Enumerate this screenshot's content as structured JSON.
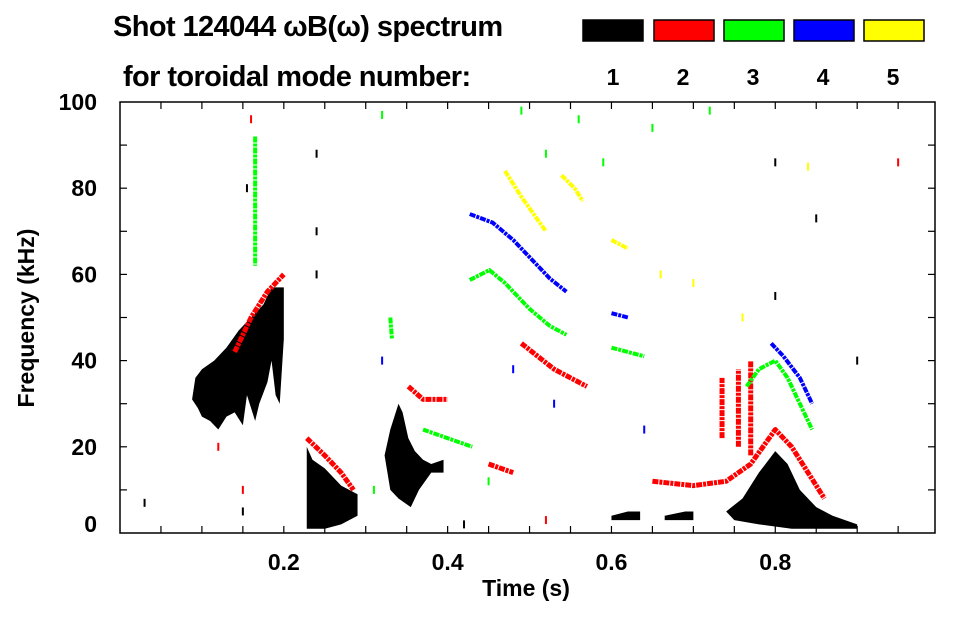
{
  "chart_data": {
    "type": "heatmap",
    "title": "Shot 124044 ωB(ω) spectrum",
    "subtitle": "for toroidal mode number:",
    "xlabel": "Time (s)",
    "ylabel": "Frequency (kHz)",
    "xlim": [
      0,
      0.995
    ],
    "ylim": [
      0,
      100
    ],
    "xticks": [
      0.2,
      0.4,
      0.6,
      0.8
    ],
    "xtick_labels": [
      "0.2",
      "0.4",
      "0.6",
      "0.8"
    ],
    "yticks": [
      0,
      20,
      40,
      60,
      80,
      100
    ],
    "ytick_labels": [
      "0",
      "20",
      "40",
      "60",
      "80",
      "100"
    ],
    "legend": [
      {
        "label": "1",
        "color": "#000000"
      },
      {
        "label": "2",
        "color": "#ff0000"
      },
      {
        "label": "3",
        "color": "#00ff00"
      },
      {
        "label": "4",
        "color": "#0000ff"
      },
      {
        "label": "5",
        "color": "#ffff00"
      }
    ],
    "legend_placement": "top-right",
    "regions": [
      {
        "mode": 1,
        "points": [
          [
            0.088,
            31
          ],
          [
            0.092,
            36
          ],
          [
            0.1,
            38
          ],
          [
            0.115,
            40
          ],
          [
            0.13,
            43
          ],
          [
            0.145,
            47
          ],
          [
            0.16,
            50
          ],
          [
            0.175,
            53
          ],
          [
            0.185,
            57
          ],
          [
            0.2,
            57
          ],
          [
            0.2,
            45
          ],
          [
            0.195,
            30
          ],
          [
            0.19,
            32
          ],
          [
            0.185,
            40
          ],
          [
            0.18,
            35
          ],
          [
            0.17,
            30
          ],
          [
            0.165,
            26
          ],
          [
            0.155,
            32
          ],
          [
            0.15,
            25
          ],
          [
            0.14,
            28
          ],
          [
            0.13,
            27
          ],
          [
            0.12,
            24
          ],
          [
            0.11,
            26
          ],
          [
            0.1,
            27
          ],
          [
            0.095,
            29
          ]
        ]
      },
      {
        "mode": 1,
        "points": [
          [
            0.228,
            20
          ],
          [
            0.235,
            17
          ],
          [
            0.25,
            15
          ],
          [
            0.27,
            11
          ],
          [
            0.29,
            9
          ],
          [
            0.29,
            4
          ],
          [
            0.27,
            2
          ],
          [
            0.25,
            1
          ],
          [
            0.228,
            1
          ]
        ]
      },
      {
        "mode": 1,
        "points": [
          [
            0.323,
            18
          ],
          [
            0.33,
            24
          ],
          [
            0.34,
            30
          ],
          [
            0.345,
            28
          ],
          [
            0.352,
            22
          ],
          [
            0.36,
            19
          ],
          [
            0.37,
            17
          ],
          [
            0.38,
            16
          ],
          [
            0.395,
            17
          ],
          [
            0.395,
            14
          ],
          [
            0.38,
            14
          ],
          [
            0.365,
            10
          ],
          [
            0.355,
            6
          ],
          [
            0.34,
            8
          ],
          [
            0.33,
            10
          ]
        ]
      },
      {
        "mode": 1,
        "points": [
          [
            0.74,
            5
          ],
          [
            0.76,
            8
          ],
          [
            0.78,
            14
          ],
          [
            0.8,
            19
          ],
          [
            0.815,
            16
          ],
          [
            0.83,
            10
          ],
          [
            0.85,
            6
          ],
          [
            0.87,
            4
          ],
          [
            0.9,
            2
          ],
          [
            0.9,
            1
          ],
          [
            0.86,
            1
          ],
          [
            0.82,
            1
          ],
          [
            0.78,
            2
          ],
          [
            0.75,
            3
          ]
        ]
      },
      {
        "mode": 1,
        "points": [
          [
            0.6,
            4
          ],
          [
            0.62,
            5
          ],
          [
            0.635,
            5
          ],
          [
            0.635,
            3
          ],
          [
            0.6,
            3
          ]
        ]
      },
      {
        "mode": 1,
        "points": [
          [
            0.665,
            4
          ],
          [
            0.69,
            5
          ],
          [
            0.7,
            5
          ],
          [
            0.7,
            3
          ],
          [
            0.665,
            3
          ]
        ]
      }
    ],
    "traces": [
      {
        "mode": 2,
        "points": [
          [
            0.14,
            42
          ],
          [
            0.16,
            50
          ],
          [
            0.18,
            56
          ],
          [
            0.2,
            60
          ]
        ]
      },
      {
        "mode": 2,
        "points": [
          [
            0.228,
            22
          ],
          [
            0.25,
            18
          ],
          [
            0.27,
            14
          ],
          [
            0.285,
            10
          ]
        ]
      },
      {
        "mode": 2,
        "points": [
          [
            0.352,
            34
          ],
          [
            0.37,
            31
          ],
          [
            0.4,
            31
          ]
        ]
      },
      {
        "mode": 2,
        "points": [
          [
            0.49,
            44
          ],
          [
            0.53,
            38
          ],
          [
            0.57,
            34
          ]
        ]
      },
      {
        "mode": 2,
        "points": [
          [
            0.45,
            16
          ],
          [
            0.48,
            14
          ]
        ]
      },
      {
        "mode": 2,
        "points": [
          [
            0.65,
            12
          ],
          [
            0.7,
            11
          ],
          [
            0.74,
            12
          ],
          [
            0.77,
            16
          ],
          [
            0.8,
            24
          ],
          [
            0.82,
            20
          ],
          [
            0.84,
            14
          ],
          [
            0.86,
            8
          ]
        ]
      },
      {
        "mode": 2,
        "points": [
          [
            0.755,
            20
          ],
          [
            0.755,
            38
          ]
        ]
      },
      {
        "mode": 2,
        "points": [
          [
            0.77,
            18
          ],
          [
            0.77,
            40
          ]
        ]
      },
      {
        "mode": 2,
        "points": [
          [
            0.735,
            22
          ],
          [
            0.735,
            36
          ]
        ]
      },
      {
        "mode": 3,
        "points": [
          [
            0.427,
            58.7
          ],
          [
            0.451,
            61
          ],
          [
            0.47,
            58
          ],
          [
            0.5,
            52
          ],
          [
            0.525,
            48
          ],
          [
            0.545,
            46
          ]
        ]
      },
      {
        "mode": 3,
        "points": [
          [
            0.165,
            92
          ],
          [
            0.165,
            62
          ]
        ]
      },
      {
        "mode": 3,
        "points": [
          [
            0.6,
            43
          ],
          [
            0.62,
            42
          ],
          [
            0.64,
            41
          ]
        ]
      },
      {
        "mode": 3,
        "points": [
          [
            0.765,
            34
          ],
          [
            0.78,
            38
          ],
          [
            0.8,
            40
          ],
          [
            0.815,
            36
          ],
          [
            0.83,
            30
          ],
          [
            0.845,
            24
          ]
        ]
      },
      {
        "mode": 3,
        "points": [
          [
            0.33,
            50
          ],
          [
            0.332,
            45
          ]
        ]
      },
      {
        "mode": 3,
        "points": [
          [
            0.37,
            24
          ],
          [
            0.4,
            22
          ],
          [
            0.43,
            20
          ]
        ]
      },
      {
        "mode": 4,
        "points": [
          [
            0.427,
            74
          ],
          [
            0.455,
            72
          ],
          [
            0.48,
            68
          ],
          [
            0.5,
            64
          ],
          [
            0.525,
            59
          ],
          [
            0.545,
            56
          ]
        ]
      },
      {
        "mode": 4,
        "points": [
          [
            0.795,
            44
          ],
          [
            0.81,
            41
          ],
          [
            0.83,
            36
          ],
          [
            0.845,
            30
          ]
        ]
      },
      {
        "mode": 4,
        "points": [
          [
            0.6,
            51
          ],
          [
            0.62,
            50
          ]
        ]
      },
      {
        "mode": 5,
        "points": [
          [
            0.47,
            84
          ],
          [
            0.49,
            78
          ],
          [
            0.505,
            74
          ],
          [
            0.52,
            70
          ]
        ]
      },
      {
        "mode": 5,
        "points": [
          [
            0.539,
            83
          ],
          [
            0.555,
            80
          ],
          [
            0.565,
            77
          ]
        ]
      },
      {
        "mode": 5,
        "points": [
          [
            0.6,
            68
          ],
          [
            0.62,
            66
          ]
        ]
      }
    ],
    "specks": [
      [
        1,
        0.03,
        7
      ],
      [
        1,
        0.155,
        80
      ],
      [
        1,
        0.24,
        88
      ],
      [
        1,
        0.24,
        70
      ],
      [
        1,
        0.24,
        60
      ],
      [
        1,
        0.15,
        5
      ],
      [
        1,
        0.42,
        2
      ],
      [
        1,
        0.8,
        86
      ],
      [
        1,
        0.8,
        55
      ],
      [
        1,
        0.85,
        73
      ],
      [
        1,
        0.9,
        40
      ],
      [
        2,
        0.16,
        96
      ],
      [
        2,
        0.12,
        20
      ],
      [
        2,
        0.95,
        86
      ],
      [
        2,
        0.52,
        3
      ],
      [
        2,
        0.15,
        10
      ],
      [
        3,
        0.32,
        97
      ],
      [
        3,
        0.49,
        98
      ],
      [
        3,
        0.56,
        96
      ],
      [
        3,
        0.65,
        94
      ],
      [
        3,
        0.72,
        98
      ],
      [
        3,
        0.52,
        88
      ],
      [
        3,
        0.59,
        86
      ],
      [
        3,
        0.31,
        10
      ],
      [
        3,
        0.45,
        12
      ],
      [
        4,
        0.48,
        38
      ],
      [
        4,
        0.53,
        30
      ],
      [
        4,
        0.64,
        24
      ],
      [
        4,
        0.32,
        40
      ],
      [
        5,
        0.66,
        60
      ],
      [
        5,
        0.7,
        58
      ],
      [
        5,
        0.76,
        50
      ],
      [
        5,
        0.84,
        85
      ]
    ]
  }
}
